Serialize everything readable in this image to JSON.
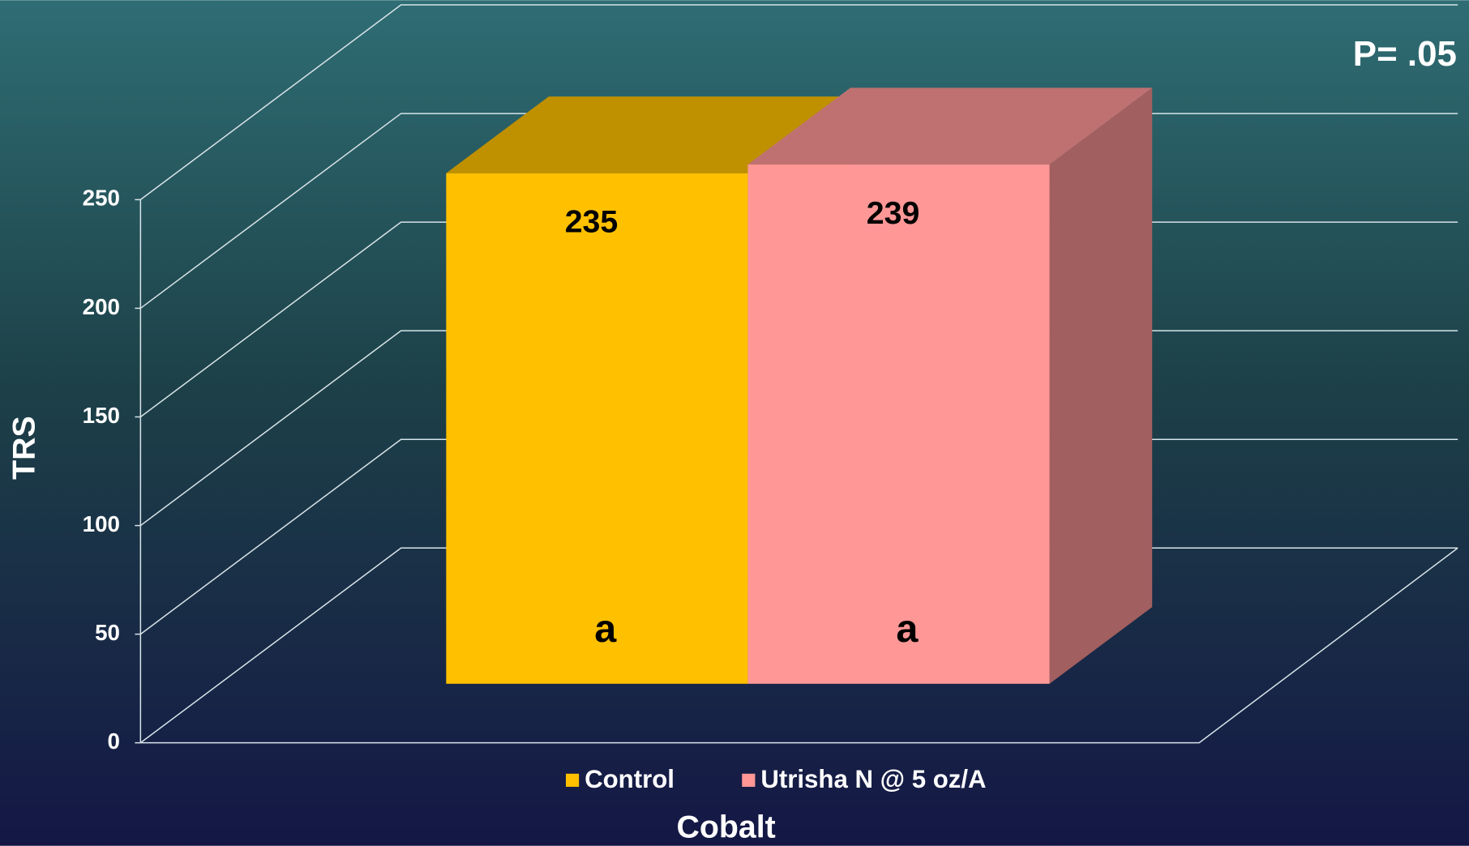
{
  "chart_data": {
    "type": "bar3d",
    "categories": [
      "Cobalt"
    ],
    "series": [
      {
        "name": "Control",
        "color": "#ffc000",
        "values": [
          235
        ],
        "letters": [
          "a"
        ]
      },
      {
        "name": "Utrisha N @ 5 oz/A",
        "color": "#ff9797",
        "values": [
          239
        ],
        "letters": [
          "a"
        ]
      }
    ],
    "ylabel": "TRS",
    "annotation": "P= .05",
    "ylim": [
      0,
      250
    ],
    "yticks": [
      0,
      50,
      100,
      150,
      200,
      250
    ],
    "grid": true,
    "legend": "bottom"
  }
}
